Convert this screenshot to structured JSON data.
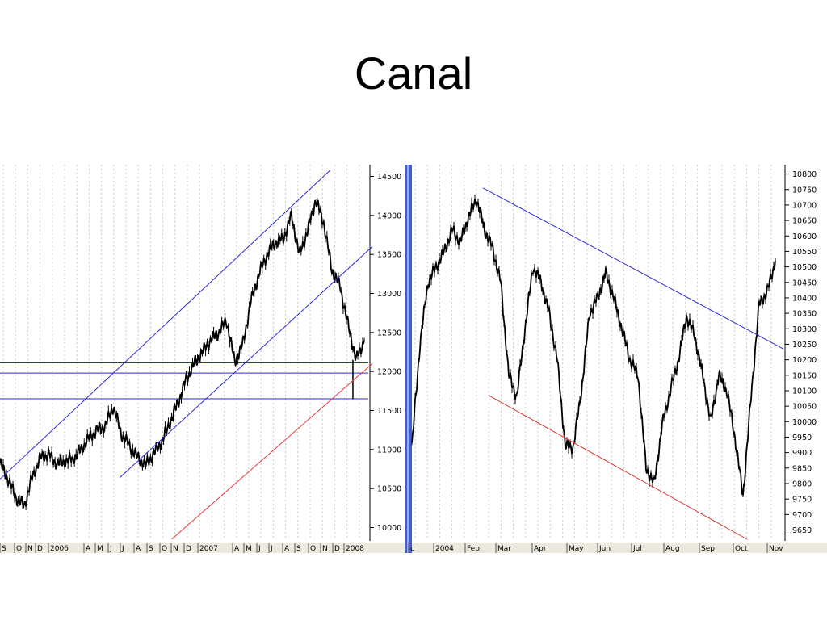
{
  "slide": {
    "title": "Canal"
  },
  "colors": {
    "price": "#000000",
    "trend_line": "#2b2bd6",
    "support_line": "#e03a3a",
    "grid": "#c8c8c8",
    "divider": "#3f5fd0",
    "axis_strip": "#ece9df"
  },
  "chart_data": [
    {
      "type": "line",
      "style": "ohlc price bars",
      "ylim": [
        9850,
        14650
      ],
      "yticks": [
        10000,
        10500,
        11000,
        11500,
        12000,
        12500,
        13000,
        13500,
        14000,
        14500
      ],
      "ytick_labels": [
        "10000",
        "10500",
        "11000",
        "11500",
        "12000",
        "12500",
        "13000",
        "13500",
        "14000",
        "14500"
      ],
      "xtick_labels": [
        "S",
        "O",
        "N",
        "D",
        "2006",
        "A",
        "M",
        "J",
        "J",
        "A",
        "S",
        "O",
        "N",
        "D",
        "2007",
        "A",
        "M",
        "J",
        "J",
        "A",
        "S",
        "O",
        "N",
        "D",
        "2008"
      ],
      "grid": true,
      "series": [
        {
          "x": [
            0,
            10,
            20,
            30,
            40,
            50,
            60,
            70,
            80,
            90,
            100,
            110,
            120,
            130,
            140,
            150,
            160,
            170,
            180,
            190,
            200,
            210,
            220,
            230,
            240,
            250,
            260,
            270,
            280,
            290,
            300,
            310,
            320,
            330,
            340,
            350,
            360,
            370,
            380,
            390,
            400,
            410,
            420,
            430,
            440,
            450
          ],
          "values": [
            10830,
            10620,
            10380,
            10280,
            10650,
            10900,
            10940,
            10820,
            10850,
            10880,
            11000,
            11150,
            11250,
            11300,
            11550,
            11200,
            11050,
            10900,
            10800,
            10950,
            11100,
            11350,
            11600,
            11900,
            12100,
            12250,
            12400,
            12500,
            12650,
            12120,
            12350,
            12900,
            13250,
            13500,
            13650,
            13700,
            14000,
            13500,
            13800,
            14200,
            13900,
            13300,
            13100,
            12600,
            12150,
            12400
          ],
          "low_spike": {
            "x": 436,
            "value": 11650
          }
        }
      ],
      "trendlines": [
        {
          "kind": "channel-upper",
          "from": {
            "x": 0,
            "y": 10620
          },
          "to": {
            "x": 408,
            "y": 14580
          }
        },
        {
          "kind": "channel-lower",
          "from": {
            "x": 148,
            "y": 10640
          },
          "to": {
            "x": 460,
            "y": 13600
          }
        },
        {
          "kind": "support-red",
          "from": {
            "x": 212,
            "y": 9850
          },
          "to": {
            "x": 460,
            "y": 12100
          }
        }
      ],
      "horizontal_levels": [
        12110,
        11980,
        11650
      ]
    },
    {
      "type": "line",
      "style": "ohlc price bars",
      "ylim": [
        9620,
        10825
      ],
      "yticks": [
        9650,
        9700,
        9750,
        9800,
        9850,
        9900,
        9950,
        10000,
        10050,
        10100,
        10150,
        10200,
        10250,
        10300,
        10350,
        10400,
        10450,
        10500,
        10550,
        10600,
        10650,
        10700,
        10750,
        10800
      ],
      "ytick_labels": [
        "9650",
        "9700",
        "9750",
        "9800",
        "9850",
        "9900",
        "9950",
        "10000",
        "10050",
        "10100",
        "10150",
        "10200",
        "10250",
        "10300",
        "10350",
        "10400",
        "10450",
        "10500",
        "10550",
        "10600",
        "10650",
        "10700",
        "10750",
        "10800"
      ],
      "xtick_labels": [
        "c",
        "2004",
        "Feb",
        "Mar",
        "Apr",
        "May",
        "Jun",
        "Jul",
        "Aug",
        "Sep",
        "Oct",
        "Nov"
      ],
      "grid": true,
      "series": [
        {
          "x": [
            0,
            10,
            20,
            30,
            40,
            50,
            60,
            70,
            80,
            90,
            100,
            110,
            120,
            130,
            140,
            150,
            160,
            170,
            180,
            190,
            200,
            210,
            220,
            230,
            240,
            250,
            260,
            270,
            280,
            290,
            300,
            310,
            320,
            330,
            340,
            350,
            360,
            370,
            380,
            390,
            400,
            410,
            420,
            430,
            440,
            450
          ],
          "values": [
            9920,
            10250,
            10450,
            10500,
            10550,
            10620,
            10580,
            10660,
            10720,
            10620,
            10560,
            10450,
            10150,
            10080,
            10300,
            10500,
            10450,
            10350,
            10200,
            9920,
            9920,
            10100,
            10350,
            10400,
            10480,
            10400,
            10300,
            10200,
            10150,
            9850,
            9800,
            9990,
            10100,
            10200,
            10340,
            10280,
            10150,
            10000,
            10150,
            10100,
            9950,
            9760,
            10080,
            10380,
            10420,
            10520
          ]
        }
      ],
      "trendlines": [
        {
          "kind": "resistance-blue",
          "from": {
            "x": 88,
            "y": 10755
          },
          "to": {
            "x": 460,
            "y": 10235
          }
        },
        {
          "kind": "support-red",
          "from": {
            "x": 95,
            "y": 10085
          },
          "to": {
            "x": 415,
            "y": 9620
          }
        }
      ]
    }
  ]
}
